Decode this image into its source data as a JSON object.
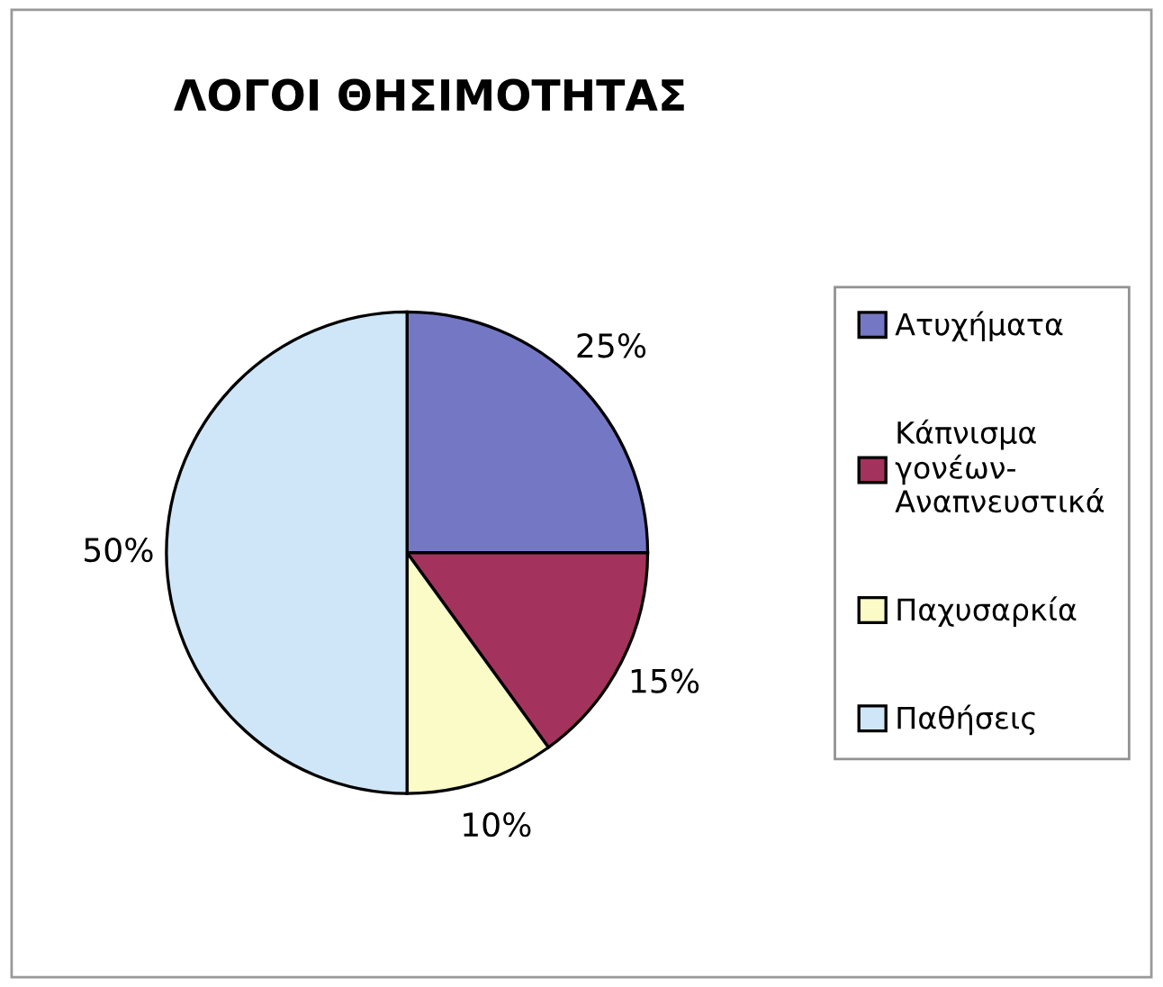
{
  "chart_data": {
    "type": "pie",
    "title": "ΛΟΓΟΙ ΘΗΣΙΜΟΤΗΤΑΣ",
    "categories": [
      "Ατυχήματα",
      "Κάπνισμα γονέων-Αναπνευστικά",
      "Παχυσαρκία",
      "Παθήσεις"
    ],
    "values": [
      25,
      15,
      10,
      50
    ],
    "colors": [
      "#7478c4",
      "#a3335c",
      "#fbfbc8",
      "#cfe6f8"
    ],
    "value_labels": [
      "25%",
      "15%",
      "10%",
      "50%"
    ],
    "legend": "right"
  }
}
